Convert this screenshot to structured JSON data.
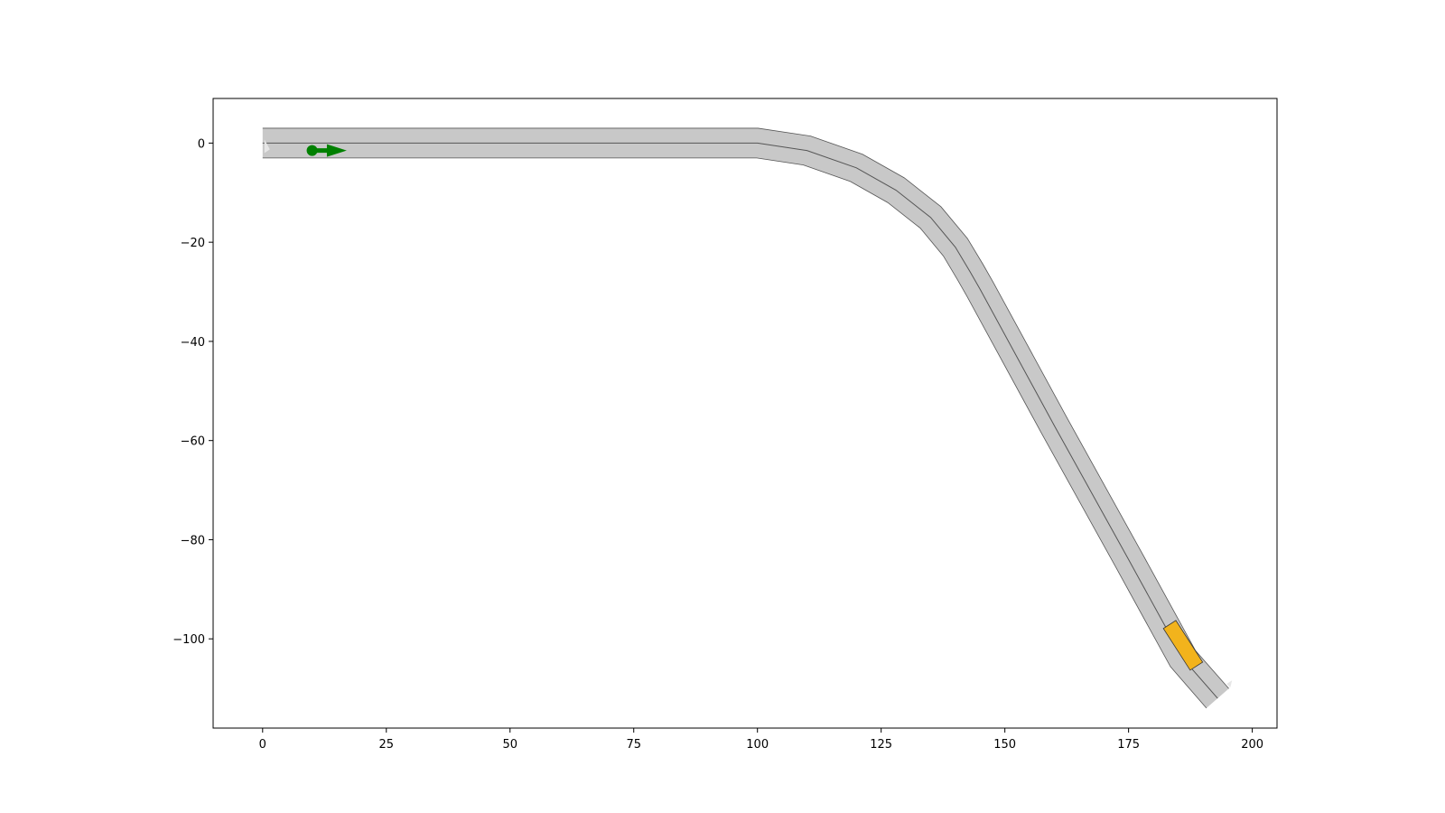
{
  "chart_data": {
    "type": "line",
    "title": "",
    "xlabel": "",
    "ylabel": "",
    "xlim": [
      -10,
      205
    ],
    "ylim": [
      -118,
      9
    ],
    "grid": false,
    "xticks": [
      0,
      25,
      50,
      75,
      100,
      125,
      150,
      175,
      200
    ],
    "yticks": [
      0,
      -20,
      -40,
      -60,
      -80,
      -100
    ],
    "xtick_labels": [
      "0",
      "25",
      "50",
      "75",
      "100",
      "125",
      "150",
      "175",
      "200"
    ],
    "ytick_labels": [
      "0",
      "−20",
      "−40",
      "−60",
      "−80",
      "−100"
    ],
    "lane": {
      "width": 6,
      "centerline": [
        [
          0,
          0
        ],
        [
          25,
          0
        ],
        [
          50,
          0
        ],
        [
          75,
          0
        ],
        [
          100,
          0
        ],
        [
          110,
          -1.5
        ],
        [
          120,
          -5
        ],
        [
          128,
          -9.5
        ],
        [
          135,
          -15
        ],
        [
          140,
          -21
        ],
        [
          143,
          -26
        ],
        [
          145,
          -29.5
        ],
        [
          160,
          -57
        ],
        [
          175,
          -84
        ],
        [
          186,
          -104
        ],
        [
          193,
          -112
        ]
      ]
    },
    "start_marker": {
      "x": 10,
      "y": -1.5,
      "dx": 7,
      "color": "#008000"
    },
    "vehicle": {
      "cx": 186,
      "cy": -101.3,
      "length": 10,
      "width": 3,
      "color": "#f2b31c"
    },
    "colors": {
      "lane_fill": "#c8c8c8",
      "lane_edge": "#555555",
      "centerline": "#555555"
    }
  }
}
